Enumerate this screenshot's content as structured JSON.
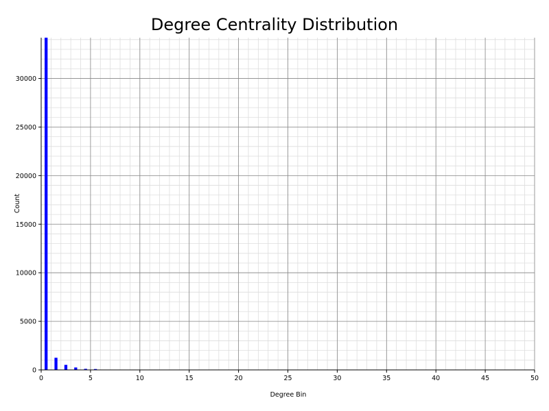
{
  "chart_data": {
    "type": "bar",
    "title": "Degree Centrality Distribution",
    "xlabel": "Degree Bin",
    "ylabel": "Count",
    "x": [
      0,
      1,
      2,
      3,
      4,
      5
    ],
    "values": [
      34200,
      1250,
      520,
      250,
      110,
      90
    ],
    "bar_width": 0.3,
    "xlim": [
      0,
      50
    ],
    "ylim": [
      0,
      34200
    ],
    "xticks": [
      0,
      5,
      10,
      15,
      20,
      25,
      30,
      35,
      40,
      45,
      50
    ],
    "yticks": [
      0,
      5000,
      10000,
      15000,
      20000,
      25000,
      30000
    ],
    "minor_x_step": 1,
    "minor_y_step": 1000,
    "grid": true,
    "bar_color": "#0000ff",
    "grid_major_color": "#888888",
    "grid_minor_color": "#dddddd"
  }
}
